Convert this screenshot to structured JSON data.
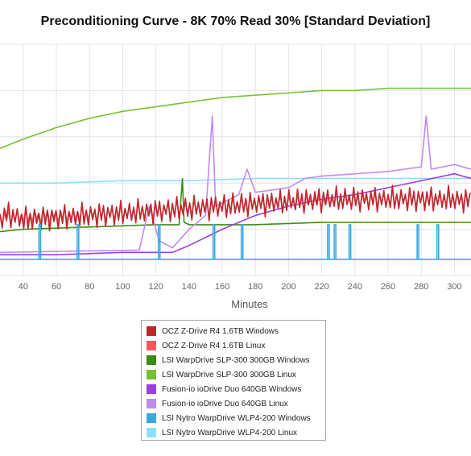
{
  "chart_data": {
    "type": "line",
    "title": "Preconditioning Curve - 8K 70% Read 30% [Standard Deviation]",
    "xlabel": "Minutes",
    "ylabel": "",
    "xlim": [
      26,
      310
    ],
    "x_ticks": [
      40,
      60,
      80,
      100,
      120,
      140,
      160,
      180,
      200,
      220,
      240,
      260,
      280,
      300
    ],
    "grid": true,
    "legend_placement": "bottom-center",
    "series": [
      {
        "name": "OCZ Z-Drive R4 1.6TB Windows",
        "color": "#c0262d",
        "points": [
          [
            26,
            0.24
          ],
          [
            30,
            0.27
          ],
          [
            40,
            0.24
          ],
          [
            60,
            0.25
          ],
          [
            80,
            0.26
          ],
          [
            100,
            0.27
          ],
          [
            120,
            0.28
          ],
          [
            140,
            0.29
          ],
          [
            160,
            0.3
          ],
          [
            180,
            0.31
          ],
          [
            200,
            0.32
          ],
          [
            220,
            0.33
          ],
          [
            240,
            0.33
          ],
          [
            260,
            0.33
          ],
          [
            280,
            0.33
          ],
          [
            300,
            0.33
          ],
          [
            310,
            0.32
          ]
        ],
        "oscillation": 0.06
      },
      {
        "name": "OCZ Z-Drive R4 1.6TB Linux",
        "color": "#ec5a5a",
        "points": [
          [
            26,
            0.25
          ],
          [
            60,
            0.26
          ],
          [
            100,
            0.27
          ],
          [
            140,
            0.29
          ],
          [
            180,
            0.31
          ],
          [
            220,
            0.32
          ],
          [
            260,
            0.33
          ],
          [
            310,
            0.33
          ]
        ],
        "oscillation": 0.04
      },
      {
        "name": "LSI WarpDrive SLP-300 300GB Windows",
        "color": "#3a8c12",
        "points": [
          [
            26,
            0.19
          ],
          [
            40,
            0.2
          ],
          [
            80,
            0.21
          ],
          [
            120,
            0.22
          ],
          [
            134,
            0.22
          ],
          [
            136,
            0.42
          ],
          [
            137,
            0.23
          ],
          [
            140,
            0.22
          ],
          [
            180,
            0.22
          ],
          [
            220,
            0.23
          ],
          [
            260,
            0.23
          ],
          [
            300,
            0.23
          ],
          [
            310,
            0.23
          ]
        ]
      },
      {
        "name": "LSI WarpDrive SLP-300 300GB Linux",
        "color": "#74c234",
        "points": [
          [
            26,
            0.55
          ],
          [
            40,
            0.59
          ],
          [
            60,
            0.64
          ],
          [
            80,
            0.68
          ],
          [
            100,
            0.71
          ],
          [
            120,
            0.73
          ],
          [
            140,
            0.75
          ],
          [
            160,
            0.77
          ],
          [
            180,
            0.78
          ],
          [
            200,
            0.79
          ],
          [
            220,
            0.8
          ],
          [
            240,
            0.8
          ],
          [
            260,
            0.81
          ],
          [
            280,
            0.81
          ],
          [
            300,
            0.81
          ],
          [
            310,
            0.81
          ]
        ]
      },
      {
        "name": "Fusion-io ioDrive Duo 640GB Windows",
        "color": "#9b3fde",
        "points": [
          [
            26,
            0.09
          ],
          [
            60,
            0.09
          ],
          [
            100,
            0.1
          ],
          [
            120,
            0.1
          ],
          [
            130,
            0.1
          ],
          [
            140,
            0.13
          ],
          [
            160,
            0.2
          ],
          [
            180,
            0.26
          ],
          [
            200,
            0.3
          ],
          [
            220,
            0.33
          ],
          [
            240,
            0.35
          ],
          [
            260,
            0.38
          ],
          [
            280,
            0.41
          ],
          [
            300,
            0.44
          ],
          [
            310,
            0.42
          ]
        ]
      },
      {
        "name": "Fusion-io ioDrive Duo 640GB Linux",
        "color": "#c18af0",
        "points": [
          [
            26,
            0.1
          ],
          [
            110,
            0.11
          ],
          [
            116,
            0.3
          ],
          [
            122,
            0.15
          ],
          [
            130,
            0.12
          ],
          [
            140,
            0.2
          ],
          [
            150,
            0.26
          ],
          [
            154,
            0.69
          ],
          [
            156,
            0.3
          ],
          [
            170,
            0.35
          ],
          [
            175,
            0.46
          ],
          [
            180,
            0.36
          ],
          [
            200,
            0.38
          ],
          [
            210,
            0.42
          ],
          [
            220,
            0.43
          ],
          [
            240,
            0.44
          ],
          [
            260,
            0.45
          ],
          [
            280,
            0.47
          ],
          [
            283,
            0.69
          ],
          [
            286,
            0.46
          ],
          [
            300,
            0.48
          ],
          [
            310,
            0.46
          ]
        ]
      },
      {
        "name": "LSI Nytro WarpDrive WLP4-200 Windows",
        "color": "#3aa9e3",
        "points": [
          [
            26,
            0.07
          ],
          [
            310,
            0.07
          ]
        ],
        "spikes": [
          50,
          73,
          122,
          155,
          172,
          224,
          228,
          237,
          278,
          290
        ]
      },
      {
        "name": "LSI Nytro WarpDrive WLP4-200 Linux",
        "color": "#8ce0f7",
        "points": [
          [
            26,
            0.4
          ],
          [
            60,
            0.4
          ],
          [
            100,
            0.41
          ],
          [
            140,
            0.41
          ],
          [
            180,
            0.42
          ],
          [
            220,
            0.42
          ],
          [
            260,
            0.42
          ],
          [
            300,
            0.42
          ],
          [
            310,
            0.42
          ]
        ]
      }
    ]
  },
  "colors": {
    "grid": "#e4e4e4",
    "axis_text": "#666666"
  }
}
